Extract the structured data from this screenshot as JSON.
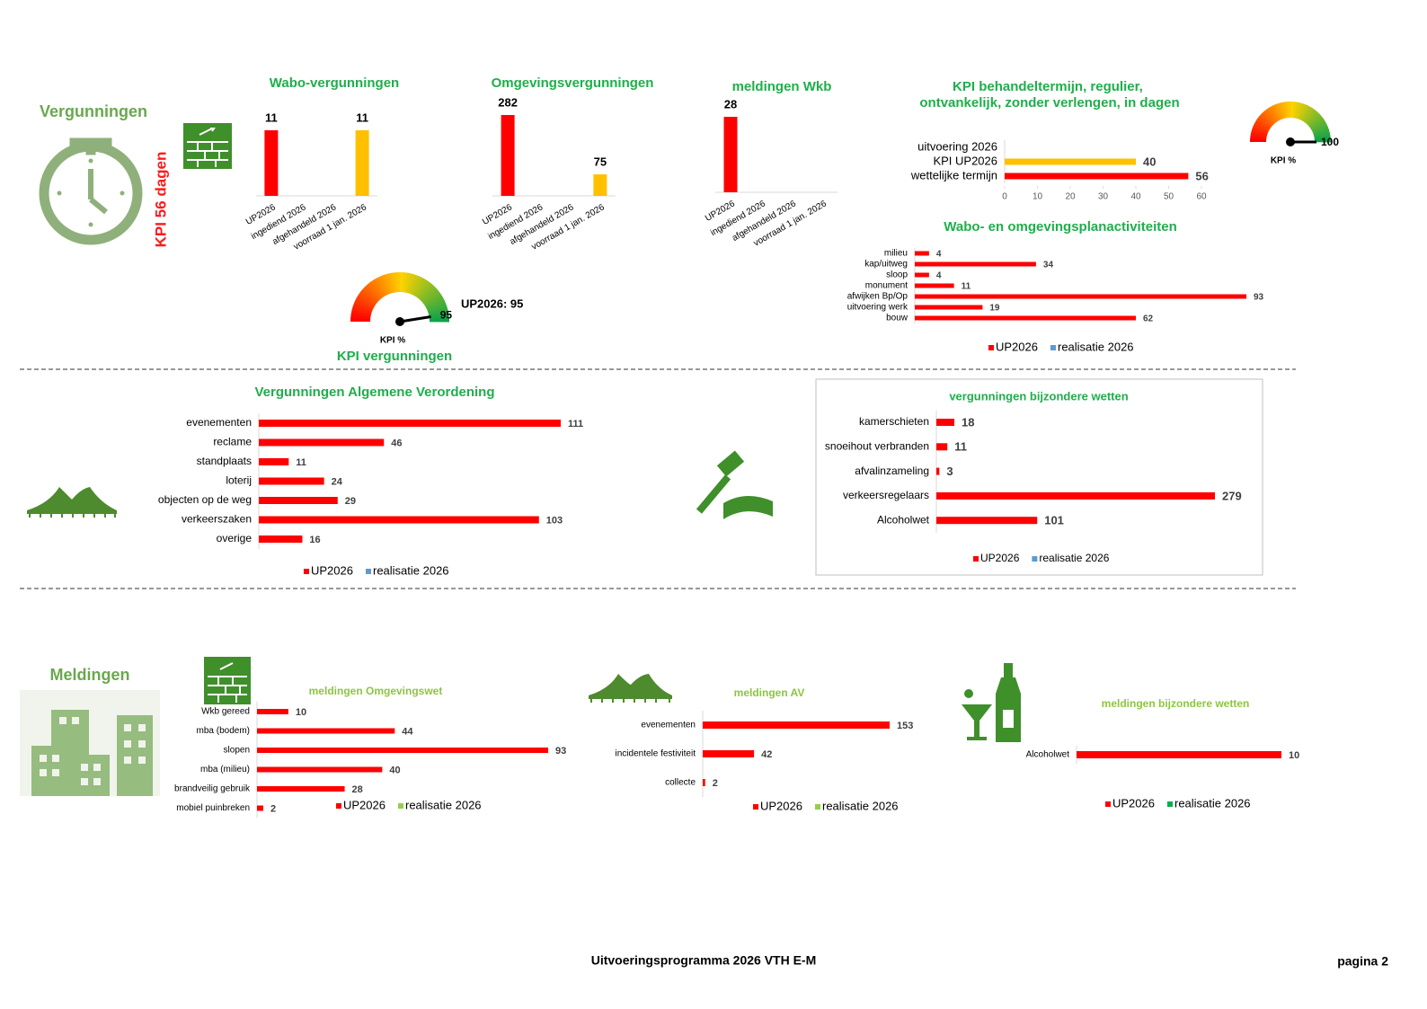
{
  "page": {
    "heading_permits": "Vergunningen",
    "kpi_days": "KPI 56 dagen",
    "heading_reports": "Meldingen",
    "footer": "Uitvoeringsprogramma 2026 VTH E-M",
    "page_number": "pagina 2"
  },
  "chart_data": [
    {
      "type": "column",
      "title": "Wabo-vergunningen",
      "categories": [
        "UP2026",
        "ingediend 2026",
        "afgehandeld 2026",
        "voorraad 1 jan. 2026"
      ],
      "values": [
        11,
        null,
        null,
        11
      ],
      "colors": [
        "#ff0000",
        null,
        null,
        "#ffc000"
      ]
    },
    {
      "type": "column",
      "title": "Omgevingsvergunningen",
      "categories": [
        "UP2026",
        "ingediend 2026",
        "afgehandeld 2026",
        "voorraad 1 jan. 2026"
      ],
      "values": [
        282,
        null,
        null,
        75
      ],
      "colors": [
        "#ff0000",
        null,
        null,
        "#ffc000"
      ]
    },
    {
      "type": "column",
      "title": "meldingen Wkb",
      "categories": [
        "UP2026",
        "ingediend 2026",
        "afgehandeld 2026",
        "voorraad 1 jan. 2026"
      ],
      "values": [
        28,
        null,
        null,
        null
      ],
      "colors": [
        "#ff0000",
        null,
        null,
        null
      ]
    },
    {
      "type": "hbar",
      "title": "KPI behandeltermijn, regulier, ontvankelijk, zonder verlengen, in dagen",
      "categories": [
        "uitvoering 2026",
        "KPI UP2026",
        "wettelijke termijn"
      ],
      "values": [
        null,
        40,
        56
      ],
      "colors": [
        null,
        "#ffc000",
        "#ff0000"
      ],
      "xlim": [
        0,
        60
      ],
      "xticks": [
        0,
        10,
        20,
        30,
        40,
        50,
        60
      ]
    },
    {
      "type": "gauge",
      "title": "KPI vergunningen",
      "label": "KPI %",
      "annotation": "UP2026: 95",
      "value": 95,
      "ylim": [
        0,
        100
      ]
    },
    {
      "type": "gauge",
      "label": "KPI %",
      "value": 100,
      "ylim": [
        0,
        100
      ]
    },
    {
      "type": "hbar",
      "title": "Wabo- en omgevingsplanactiviteiten",
      "categories": [
        "milieu",
        "kap/uitweg",
        "sloop",
        "monument",
        "afwijken Bp/Op",
        "uitvoering werk",
        "bouw"
      ],
      "series": [
        {
          "name": "UP2026",
          "color": "#ff0000",
          "values": [
            4,
            34,
            4,
            11,
            93,
            19,
            62
          ]
        },
        {
          "name": "realisatie 2026",
          "color": "#5b9bd5",
          "values": [
            null,
            null,
            null,
            null,
            null,
            null,
            null
          ]
        }
      ]
    },
    {
      "type": "hbar",
      "title": "Vergunningen Algemene Verordening",
      "categories": [
        "evenementen",
        "reclame",
        "standplaats",
        "loterij",
        "objecten op de weg",
        "verkeerszaken",
        "overige"
      ],
      "series": [
        {
          "name": "UP2026",
          "color": "#ff0000",
          "values": [
            111,
            46,
            11,
            24,
            29,
            103,
            16
          ]
        },
        {
          "name": "realisatie 2026",
          "color": "#5b9bd5",
          "values": [
            null,
            null,
            null,
            null,
            null,
            null,
            null
          ]
        }
      ]
    },
    {
      "type": "hbar",
      "title": "vergunningen bijzondere wetten",
      "categories": [
        "kamerschieten",
        "snoeihout verbranden",
        "afvalinzameling",
        "verkeersregelaars",
        "Alcoholwet"
      ],
      "series": [
        {
          "name": "UP2026",
          "color": "#ff0000",
          "values": [
            18,
            11,
            3,
            279,
            101
          ]
        },
        {
          "name": "realisatie 2026",
          "color": "#5b9bd5",
          "values": [
            null,
            null,
            null,
            null,
            null
          ]
        }
      ]
    },
    {
      "type": "hbar",
      "title": "meldingen Omgevingswet",
      "categories": [
        "Wkb gereed",
        "mba (bodem)",
        "slopen",
        "mba (milieu)",
        "brandveilig gebruik",
        "mobiel puinbreken"
      ],
      "series": [
        {
          "name": "UP2026",
          "color": "#ff0000",
          "values": [
            10,
            44,
            93,
            40,
            28,
            2
          ]
        },
        {
          "name": "realisatie 2026",
          "color": "#92d050",
          "values": [
            null,
            null,
            null,
            null,
            null,
            null
          ]
        }
      ]
    },
    {
      "type": "hbar",
      "title": "meldingen AV",
      "categories": [
        "evenementen",
        "incidentele festiviteit",
        "collecte"
      ],
      "series": [
        {
          "name": "UP2026",
          "color": "#ff0000",
          "values": [
            153,
            42,
            2
          ]
        },
        {
          "name": "realisatie 2026",
          "color": "#92d050",
          "values": [
            null,
            null,
            null
          ]
        }
      ]
    },
    {
      "type": "hbar",
      "title": "meldingen bijzondere wetten",
      "categories": [
        "Alcoholwet"
      ],
      "series": [
        {
          "name": "UP2026",
          "color": "#ff0000",
          "values": [
            10
          ]
        },
        {
          "name": "realisatie 2026",
          "color": "#00b050",
          "values": [
            null
          ]
        }
      ]
    }
  ]
}
